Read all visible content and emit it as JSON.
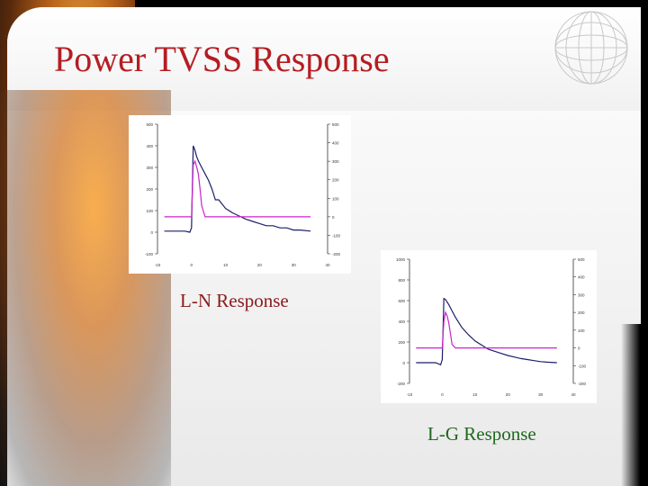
{
  "slide": {
    "title": "Power TVSS Response",
    "captions": {
      "ln": "L-N Response",
      "lg": "L-G Response"
    },
    "colors": {
      "title": "#b51d22",
      "ln_caption": "#8a1a1a",
      "lg_caption": "#1d6a1d",
      "voltage_trace": "#1b1f6b",
      "current_trace": "#cc22cc",
      "background_accent": "#e08a2a"
    },
    "icons": [
      "wireframe-globe-icon"
    ]
  },
  "chart_data": [
    {
      "type": "line",
      "name": "L-N Response",
      "left_axis": {
        "ticks": [
          "500",
          "400",
          "300",
          "200",
          "100",
          "0",
          "-100"
        ],
        "ylim": [
          -100,
          500
        ]
      },
      "right_axis": {
        "ticks": [
          "500",
          "400",
          "300",
          "200",
          "100",
          "0",
          "-100",
          "-200"
        ],
        "ylim": [
          -200,
          500
        ]
      },
      "x_axis": {
        "ticks": [
          "-10",
          "0",
          "10",
          "20",
          "30",
          "40"
        ],
        "xlim": [
          -10,
          40
        ]
      },
      "series": [
        {
          "axis": "left",
          "color": "#1b1f6b",
          "x": [
            -8,
            -2,
            -0.5,
            0,
            0.5,
            1,
            1.5,
            2,
            3,
            4,
            5,
            6,
            7,
            8,
            10,
            12,
            14,
            16,
            18,
            20,
            22,
            24,
            26,
            28,
            30,
            32,
            35
          ],
          "y": [
            5,
            5,
            0,
            20,
            400,
            380,
            350,
            330,
            300,
            270,
            240,
            200,
            150,
            150,
            110,
            90,
            75,
            60,
            50,
            40,
            30,
            30,
            20,
            20,
            10,
            10,
            5
          ]
        },
        {
          "axis": "right",
          "color": "#cc22cc",
          "x": [
            -8,
            -1,
            0,
            0.5,
            1,
            1.5,
            2,
            2.5,
            3,
            4,
            5,
            8,
            12,
            16,
            20,
            24,
            28,
            32,
            35
          ],
          "y": [
            0,
            0,
            0,
            280,
            300,
            270,
            230,
            150,
            60,
            0,
            0,
            0,
            0,
            0,
            0,
            0,
            0,
            0,
            0
          ]
        }
      ]
    },
    {
      "type": "line",
      "name": "L-G Response",
      "left_axis": {
        "ticks": [
          "1000",
          "800",
          "600",
          "400",
          "200",
          "0",
          "-200"
        ],
        "ylim": [
          -200,
          1000
        ]
      },
      "right_axis": {
        "ticks": [
          "500",
          "400",
          "300",
          "200",
          "100",
          "0",
          "-100",
          "-200"
        ],
        "ylim": [
          -200,
          500
        ]
      },
      "x_axis": {
        "ticks": [
          "-10",
          "0",
          "10",
          "20",
          "30",
          "40"
        ],
        "xlim": [
          -10,
          40
        ]
      },
      "series": [
        {
          "axis": "left",
          "color": "#1b1f6b",
          "x": [
            -8,
            -2,
            -0.5,
            0,
            0.5,
            1,
            2,
            3,
            4,
            5,
            6,
            8,
            10,
            12,
            14,
            16,
            18,
            20,
            22,
            24,
            26,
            28,
            30,
            32,
            35
          ],
          "y": [
            0,
            0,
            -20,
            30,
            620,
            610,
            560,
            500,
            440,
            390,
            340,
            270,
            210,
            170,
            130,
            110,
            90,
            70,
            55,
            40,
            30,
            20,
            10,
            5,
            0
          ]
        },
        {
          "axis": "right",
          "color": "#cc22cc",
          "x": [
            -8,
            -1,
            0,
            0.5,
            1,
            1.5,
            2,
            2.5,
            3,
            4,
            5,
            8,
            12,
            16,
            20,
            24,
            28,
            32,
            35
          ],
          "y": [
            0,
            0,
            0,
            150,
            200,
            180,
            140,
            80,
            20,
            0,
            0,
            0,
            0,
            0,
            0,
            0,
            0,
            0,
            0
          ]
        }
      ]
    }
  ]
}
